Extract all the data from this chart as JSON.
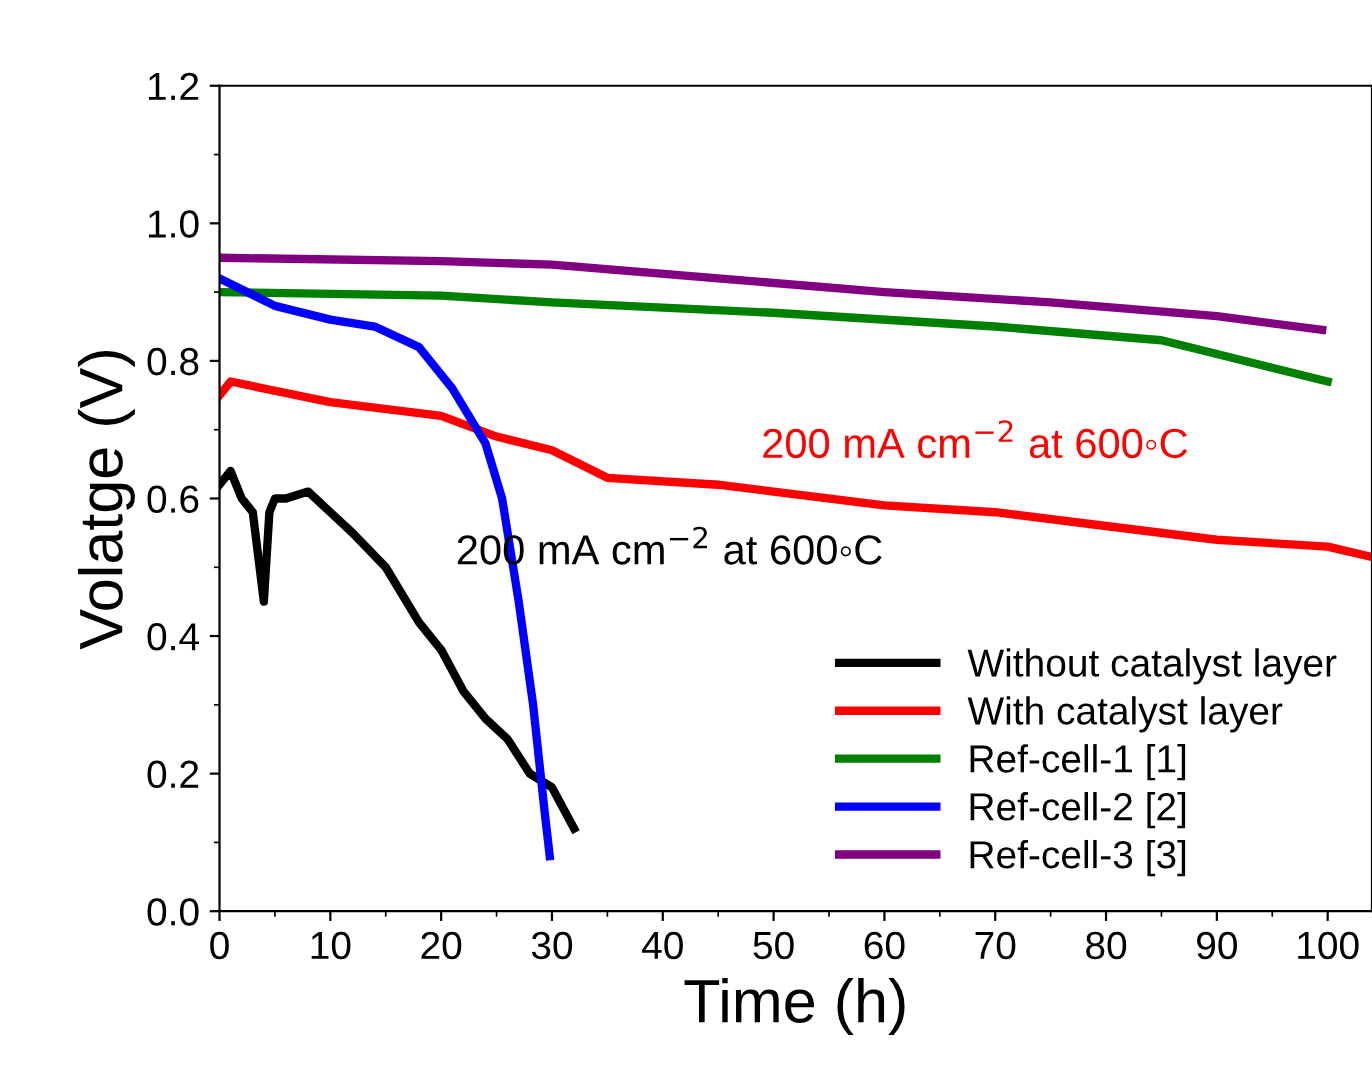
{
  "chart_data": {
    "type": "line",
    "xlabel": "Time (h)",
    "ylabel": "Volatge (V)",
    "xlim": [
      0,
      104
    ],
    "ylim": [
      0,
      1.2
    ],
    "xticks": [
      0,
      10,
      20,
      30,
      40,
      50,
      60,
      70,
      80,
      90,
      100
    ],
    "yticks": [
      {
        "value": 0,
        "label": "0.0"
      },
      {
        "value": 0.2,
        "label": "0.2"
      },
      {
        "value": 0.4,
        "label": "0.4"
      },
      {
        "value": 0.6,
        "label": "0.6"
      },
      {
        "value": 0.8,
        "label": "0.8"
      },
      {
        "value": 1.0,
        "label": "1.0"
      },
      {
        "value": 1.2,
        "label": "1.2"
      }
    ],
    "legend": "bottom right",
    "grid": false,
    "marker": "none",
    "line_style": "solid",
    "annotations": [
      "200 mA cm$^{−2}$ at 600◦C",
      "200 mA cm$^{−2}$ at 600◦C"
    ],
    "series": [
      {
        "name": "Without catalyst layer",
        "color": "#000000",
        "x": [
          0,
          1,
          2,
          3,
          4,
          4.5,
          5,
          6,
          8,
          10,
          12,
          15,
          18,
          20,
          22,
          24,
          26,
          28,
          30,
          31,
          32
        ],
        "values": [
          0.62,
          0.64,
          0.6,
          0.58,
          0.45,
          0.58,
          0.6,
          0.6,
          0.61,
          0.58,
          0.55,
          0.5,
          0.42,
          0.38,
          0.32,
          0.28,
          0.25,
          0.2,
          0.18,
          0.15,
          0.12
        ]
      },
      {
        "name": "With catalyst layer",
        "color": "#ff0000",
        "x": [
          0,
          1,
          10,
          20,
          25,
          30,
          35,
          45,
          50,
          60,
          70,
          80,
          90,
          100,
          104
        ],
        "values": [
          0.75,
          0.77,
          0.74,
          0.72,
          0.69,
          0.67,
          0.63,
          0.62,
          0.61,
          0.59,
          0.58,
          0.56,
          0.54,
          0.53,
          0.515
        ]
      },
      {
        "name": "Ref-cell-1 [1]",
        "color": "#008000",
        "x": [
          0,
          20,
          30,
          50,
          70,
          85,
          90,
          100
        ],
        "values": [
          0.9,
          0.895,
          0.885,
          0.87,
          0.85,
          0.83,
          0.81,
          0.77
        ]
      },
      {
        "name": "Ref-cell-2 [2]",
        "color": "#0000ff",
        "x": [
          0,
          5,
          10,
          14,
          18,
          21,
          24,
          25.5,
          27,
          28.3,
          29.3,
          29.8
        ],
        "values": [
          0.92,
          0.88,
          0.86,
          0.85,
          0.82,
          0.76,
          0.68,
          0.6,
          0.45,
          0.3,
          0.15,
          0.08
        ]
      },
      {
        "name": "Ref-cell-3 [3]",
        "color": "#800080",
        "x": [
          0,
          20,
          30,
          45,
          60,
          75,
          90,
          99.5
        ],
        "values": [
          0.95,
          0.945,
          0.94,
          0.92,
          0.9,
          0.885,
          0.865,
          0.845
        ]
      }
    ]
  }
}
